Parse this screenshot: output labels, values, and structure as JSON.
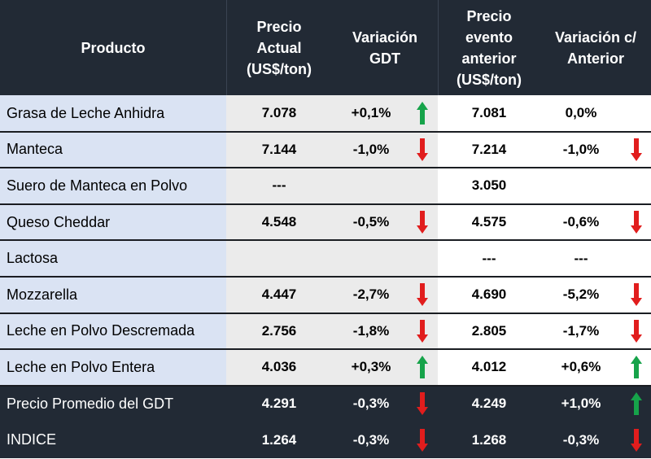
{
  "table": {
    "headers": [
      "Producto",
      "Precio\nActual\n(US$/ton)",
      "Variación\nGDT",
      "Precio\nevento\nanterior\n(US$/ton)",
      "Variación c/\nAnterior"
    ],
    "rows": [
      {
        "producto": "Grasa de Leche Anhidra",
        "precio_actual": "7.078",
        "variacion_gdt": "+0,1%",
        "arrow_gdt": "up",
        "precio_anterior": "7.081",
        "variacion_anterior": "0,0%",
        "arrow_anterior": "none"
      },
      {
        "producto": "Manteca",
        "precio_actual": "7.144",
        "variacion_gdt": "-1,0%",
        "arrow_gdt": "down",
        "precio_anterior": "7.214",
        "variacion_anterior": "-1,0%",
        "arrow_anterior": "down"
      },
      {
        "producto": "Suero de Manteca en Polvo",
        "precio_actual": "---",
        "variacion_gdt": "",
        "arrow_gdt": "none",
        "precio_anterior": "3.050",
        "variacion_anterior": "",
        "arrow_anterior": "none"
      },
      {
        "producto": "Queso Cheddar",
        "precio_actual": "4.548",
        "variacion_gdt": "-0,5%",
        "arrow_gdt": "down",
        "precio_anterior": "4.575",
        "variacion_anterior": "-0,6%",
        "arrow_anterior": "down"
      },
      {
        "producto": "Lactosa",
        "precio_actual": "",
        "variacion_gdt": "",
        "arrow_gdt": "none",
        "precio_anterior": "---",
        "variacion_anterior": "---",
        "arrow_anterior": "none"
      },
      {
        "producto": "Mozzarella",
        "precio_actual": "4.447",
        "variacion_gdt": "-2,7%",
        "arrow_gdt": "down",
        "precio_anterior": "4.690",
        "variacion_anterior": "-5,2%",
        "arrow_anterior": "down"
      },
      {
        "producto": "Leche en Polvo Descremada",
        "precio_actual": "2.756",
        "variacion_gdt": "-1,8%",
        "arrow_gdt": "down",
        "precio_anterior": "2.805",
        "variacion_anterior": "-1,7%",
        "arrow_anterior": "down"
      },
      {
        "producto": "Leche en Polvo Entera",
        "precio_actual": "4.036",
        "variacion_gdt": "+0,3%",
        "arrow_gdt": "up",
        "precio_anterior": "4.012",
        "variacion_anterior": "+0,6%",
        "arrow_anterior": "up"
      }
    ],
    "footer_rows": [
      {
        "producto": "Precio Promedio del GDT",
        "precio_actual": "4.291",
        "variacion_gdt": "-0,3%",
        "arrow_gdt": "down",
        "precio_anterior": "4.249",
        "variacion_anterior": "+1,0%",
        "arrow_anterior": "up"
      },
      {
        "producto": "INDICE",
        "precio_actual": "1.264",
        "variacion_gdt": "-0,3%",
        "arrow_gdt": "down",
        "precio_anterior": "1.268",
        "variacion_anterior": "-0,3%",
        "arrow_anterior": "down"
      }
    ]
  },
  "colors": {
    "header_bg": "#222a35",
    "product_bg": "#dae3f3",
    "current_bg": "#ebebeb",
    "arrow_up": "#16a34a",
    "arrow_down": "#e11d1d"
  }
}
